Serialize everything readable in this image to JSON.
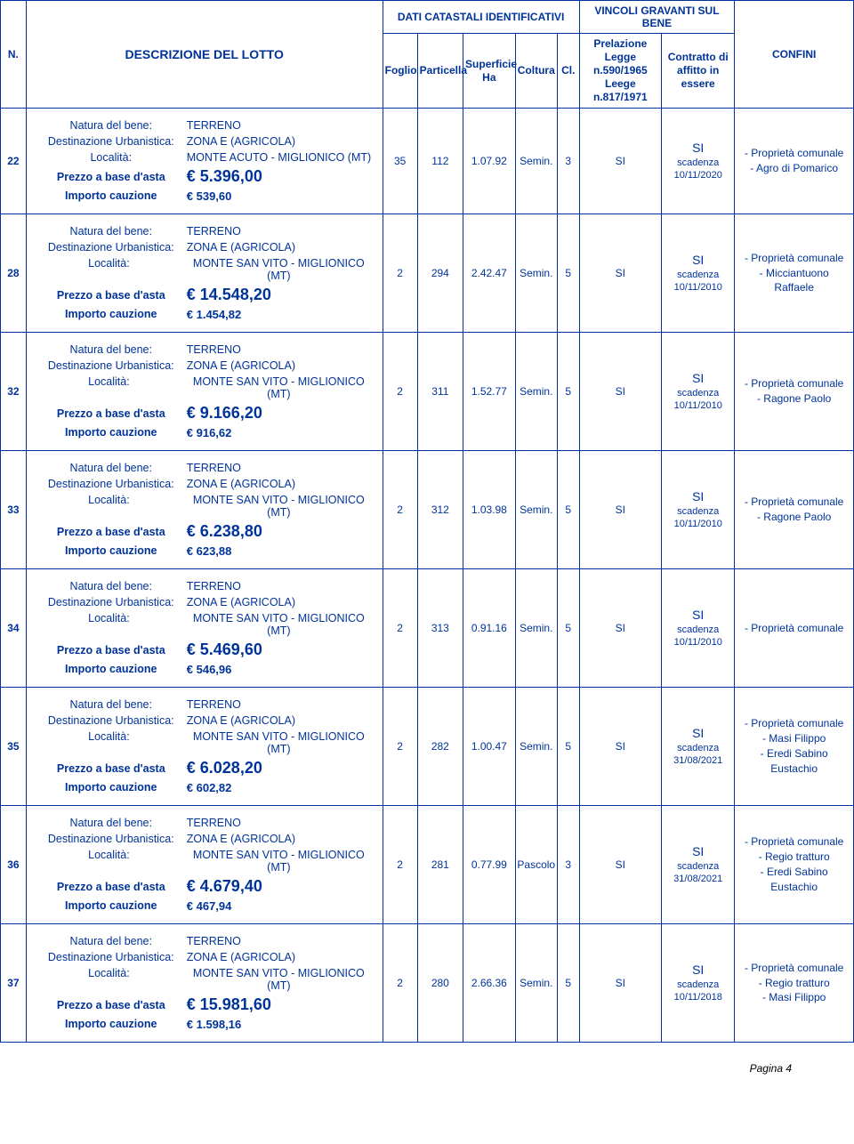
{
  "headers": {
    "n": "N.",
    "descrizione": "DESCRIZIONE DEL  LOTTO",
    "dati_catastali": "DATI CATASTALI IDENTIFICATIVI",
    "vincoli": "VINCOLI GRAVANTI SUL BENE",
    "confini": "CONFINI",
    "foglio": "Foglio",
    "particella": "Particella",
    "superficie": "Superficie Ha",
    "coltura": "Coltura",
    "cl": "Cl.",
    "prelazione": "Prelazione Legge n.590/1965 Leege n.817/1971",
    "contratto": "Contratto di affitto in essere"
  },
  "labels": {
    "natura": "Natura del bene:",
    "destinazione": "Destinazione Urbanistica:",
    "localita": "Località:",
    "prezzo": "Prezzo a base d'asta",
    "cauzione": "Importo cauzione",
    "scadenza": "scadenza"
  },
  "footer": "Pagina 4",
  "rows": [
    {
      "n": "22",
      "natura": "TERRENO",
      "destinazione": "ZONA E (AGRICOLA)",
      "localita": "MONTE ACUTO - MIGLIONICO (MT)",
      "prezzo": "€ 5.396,00",
      "cauzione": "€ 539,60",
      "foglio": "35",
      "particella": "112",
      "superficie": "1.07.92",
      "coltura": "Semin.",
      "cl": "3",
      "prelazione": "SI",
      "contratto_si": "SI",
      "contratto_date": "10/11/2020",
      "confini": [
        "- Proprietà comunale",
        "- Agro di Pomarico"
      ]
    },
    {
      "n": "28",
      "natura": "TERRENO",
      "destinazione": "ZONA E (AGRICOLA)",
      "localita": "MONTE SAN VITO - MIGLIONICO (MT)",
      "prezzo": "€ 14.548,20",
      "cauzione": "€ 1.454,82",
      "foglio": "2",
      "particella": "294",
      "superficie": "2.42.47",
      "coltura": "Semin.",
      "cl": "5",
      "prelazione": "SI",
      "contratto_si": "SI",
      "contratto_date": "10/11/2010",
      "confini": [
        "- Proprietà comunale",
        "- Micciantuono Raffaele"
      ]
    },
    {
      "n": "32",
      "natura": "TERRENO",
      "destinazione": "ZONA E (AGRICOLA)",
      "localita": "MONTE SAN VITO - MIGLIONICO (MT)",
      "prezzo": "€ 9.166,20",
      "cauzione": "€ 916,62",
      "foglio": "2",
      "particella": "311",
      "superficie": "1.52.77",
      "coltura": "Semin.",
      "cl": "5",
      "prelazione": "SI",
      "contratto_si": "SI",
      "contratto_date": "10/11/2010",
      "confini": [
        "- Proprietà comunale",
        "- Ragone Paolo"
      ]
    },
    {
      "n": "33",
      "natura": "TERRENO",
      "destinazione": "ZONA E (AGRICOLA)",
      "localita": "MONTE SAN VITO - MIGLIONICO (MT)",
      "prezzo": "€ 6.238,80",
      "cauzione": "€ 623,88",
      "foglio": "2",
      "particella": "312",
      "superficie": "1.03.98",
      "coltura": "Semin.",
      "cl": "5",
      "prelazione": "SI",
      "contratto_si": "SI",
      "contratto_date": "10/11/2010",
      "confini": [
        "- Proprietà comunale",
        "- Ragone Paolo"
      ]
    },
    {
      "n": "34",
      "natura": "TERRENO",
      "destinazione": "ZONA E (AGRICOLA)",
      "localita": "MONTE SAN VITO - MIGLIONICO (MT)",
      "prezzo": "€ 5.469,60",
      "cauzione": "€ 546,96",
      "foglio": "2",
      "particella": "313",
      "superficie": "0.91.16",
      "coltura": "Semin.",
      "cl": "5",
      "prelazione": "SI",
      "contratto_si": "SI",
      "contratto_date": "10/11/2010",
      "confini": [
        "- Proprietà comunale"
      ]
    },
    {
      "n": "35",
      "natura": "TERRENO",
      "destinazione": "ZONA E (AGRICOLA)",
      "localita": "MONTE SAN VITO - MIGLIONICO (MT)",
      "prezzo": "€ 6.028,20",
      "cauzione": "€ 602,82",
      "foglio": "2",
      "particella": "282",
      "superficie": "1.00.47",
      "coltura": "Semin.",
      "cl": "5",
      "prelazione": "SI",
      "contratto_si": "SI",
      "contratto_date": "31/08/2021",
      "confini": [
        "- Proprietà comunale",
        "- Masi Filippo",
        "- Eredi Sabino Eustachio"
      ]
    },
    {
      "n": "36",
      "natura": "TERRENO",
      "destinazione": "ZONA E (AGRICOLA)",
      "localita": "MONTE SAN VITO - MIGLIONICO (MT)",
      "prezzo": "€ 4.679,40",
      "cauzione": "€ 467,94",
      "foglio": "2",
      "particella": "281",
      "superficie": "0.77.99",
      "coltura": "Pascolo",
      "cl": "3",
      "prelazione": "SI",
      "contratto_si": "SI",
      "contratto_date": "31/08/2021",
      "confini": [
        "- Proprietà comunale",
        "- Regio tratturo",
        "- Eredi Sabino Eustachio"
      ]
    },
    {
      "n": "37",
      "natura": "TERRENO",
      "destinazione": "ZONA E (AGRICOLA)",
      "localita": "MONTE SAN VITO - MIGLIONICO (MT)",
      "prezzo": "€ 15.981,60",
      "cauzione": "€ 1.598,16",
      "foglio": "2",
      "particella": "280",
      "superficie": "2.66.36",
      "coltura": "Semin.",
      "cl": "5",
      "prelazione": "SI",
      "contratto_si": "SI",
      "contratto_date": "10/11/2018",
      "confini": [
        "- Proprietà comunale",
        "- Regio tratturo",
        "- Masi Filippo"
      ]
    }
  ]
}
